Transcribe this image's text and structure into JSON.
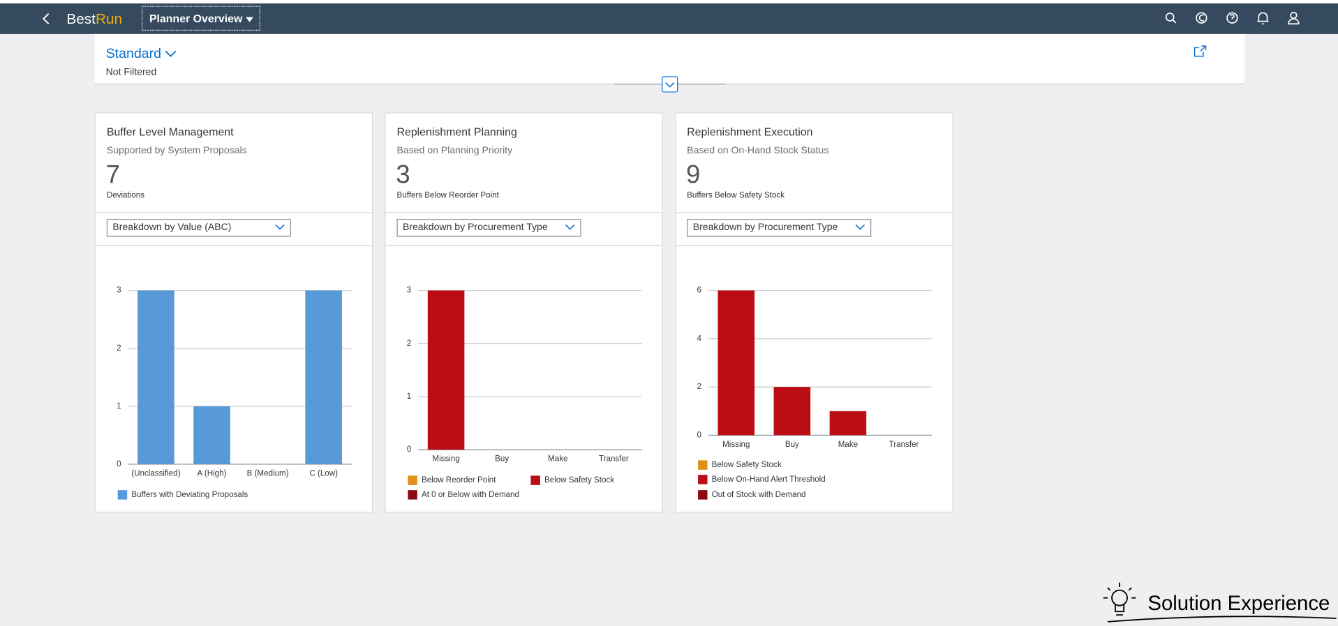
{
  "header": {
    "logo": [
      "Best",
      "Run"
    ],
    "app_title": "Planner Overview"
  },
  "variant": {
    "name": "Standard",
    "filter_status": "Not Filtered"
  },
  "cards": [
    {
      "title": "Buffer Level Management",
      "subtitle": "Supported by System Proposals",
      "kpi": 7,
      "kpi_label": "Deviations",
      "dropdown": "Breakdown by Value (ABC)"
    },
    {
      "title": "Replenishment Planning",
      "subtitle": "Based on Planning Priority",
      "kpi": 3,
      "kpi_label": "Buffers Below Reorder Point",
      "dropdown": "Breakdown by Procurement Type"
    },
    {
      "title": "Replenishment Execution",
      "subtitle": "Based on On-Hand Stock Status",
      "kpi": 9,
      "kpi_label": "Buffers Below Safety Stock",
      "dropdown": "Breakdown by Procurement Type"
    }
  ],
  "chart_data": [
    {
      "type": "bar",
      "categories": [
        "(Unclassified)",
        "A (High)",
        "B (Medium)",
        "C (Low)"
      ],
      "series": [
        {
          "name": "Buffers with Deviating Proposals",
          "color": "#5899da",
          "values": [
            3,
            1,
            0,
            3
          ]
        }
      ],
      "ylim": [
        0,
        3
      ],
      "yticks": [
        0,
        1,
        2,
        3
      ],
      "grid": true
    },
    {
      "type": "stacked_bar",
      "categories": [
        "Missing",
        "Buy",
        "Make",
        "Transfer"
      ],
      "series": [
        {
          "name": "Below Reorder Point",
          "color": "#e09017",
          "values": [
            0,
            0,
            0,
            0
          ]
        },
        {
          "name": "Below Safety Stock",
          "color": "#bb0e14",
          "values": [
            3,
            0,
            0,
            0
          ]
        },
        {
          "name": "At 0 or Below with Demand",
          "color": "#8b0a12",
          "values": [
            0,
            0,
            0,
            0
          ]
        }
      ],
      "ylim": [
        0,
        3
      ],
      "yticks": [
        0,
        1,
        2,
        3
      ],
      "grid": true
    },
    {
      "type": "stacked_bar",
      "categories": [
        "Missing",
        "Buy",
        "Make",
        "Transfer"
      ],
      "series": [
        {
          "name": "Below Safety Stock",
          "color": "#e09017",
          "values": [
            0,
            0,
            0,
            0
          ]
        },
        {
          "name": "Below On-Hand Alert Threshold",
          "color": "#bb0e14",
          "values": [
            6,
            2,
            1,
            0
          ]
        },
        {
          "name": "Out of Stock with Demand",
          "color": "#8b0a12",
          "values": [
            0,
            0,
            0,
            0
          ]
        }
      ],
      "ylim": [
        0,
        6
      ],
      "yticks": [
        0,
        2,
        4,
        6
      ],
      "grid": true
    }
  ],
  "watermark": {
    "text": [
      "Solution",
      "Experience"
    ]
  }
}
